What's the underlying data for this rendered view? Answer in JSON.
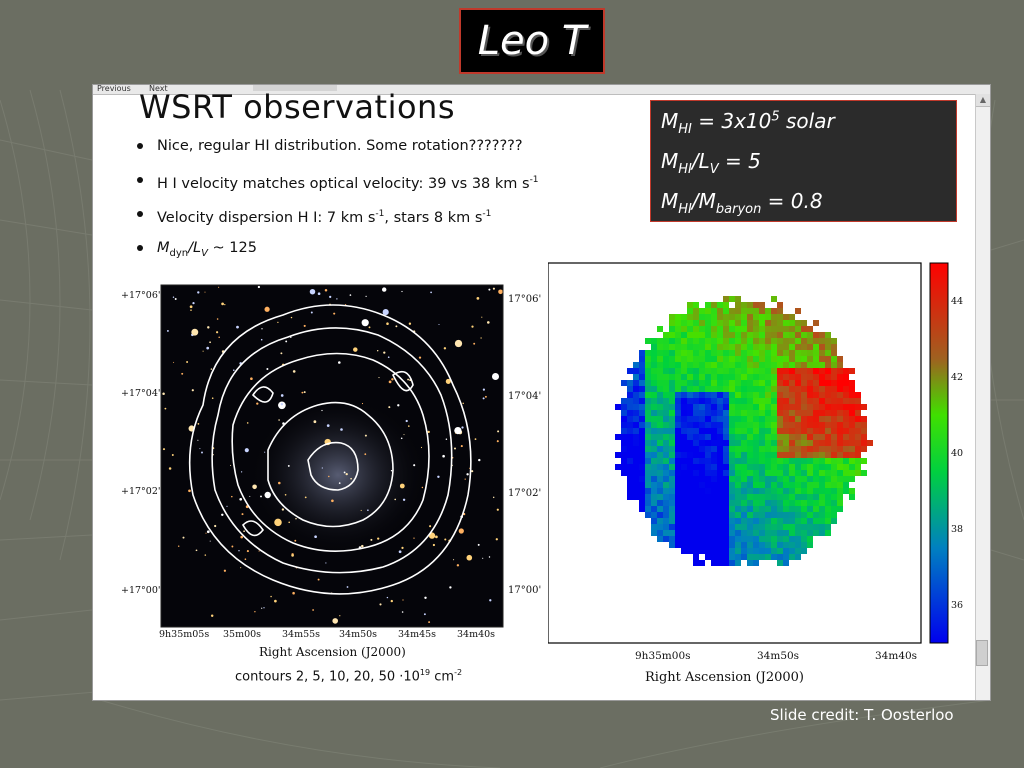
{
  "slide": {
    "title": "Leo T",
    "credit": "Slide credit: T. Oosterloo"
  },
  "window": {
    "toolbar_prev": "Previous",
    "toolbar_next": "Next"
  },
  "paper": {
    "heading": "WSRT observations",
    "bullets": [
      {
        "pre": "Nice, regular HI distribution.    Some rotation???????",
        "sup": "",
        "post": ""
      },
      {
        "pre": "H I velocity matches optical velocity:  39 vs 38 km s",
        "sup": "-1",
        "post": ""
      },
      {
        "pre": "Velocity dispersion H I: 7 km s",
        "sup": "-1",
        "post": ", stars 8 km s",
        "sup2": "-1"
      },
      {
        "pre": "M",
        "sub": "dyn",
        "mid": "/L",
        "sub2": "V",
        "post": " ~ 125"
      }
    ]
  },
  "info": {
    "line1": {
      "m": "M",
      "sub": "HI",
      "text": " = 3x10",
      "sup": "5",
      "tail": " solar"
    },
    "line2": {
      "m": "M",
      "sub": "HI",
      "mid": "/L",
      "sub2": "V",
      "tail": " = 5"
    },
    "line3": {
      "m": "M",
      "sub": "HI",
      "mid": "/M",
      "sub2": "baryon",
      "tail": " = 0.8"
    }
  },
  "left_panel": {
    "dec_ticks": [
      "+17°06'",
      "+17°04'",
      "+17°02'",
      "+17°00'"
    ],
    "ra_ticks": [
      "9h35m05s",
      "35m00s",
      "34m55s",
      "34m50s",
      "34m45s",
      "34m40s"
    ],
    "xlabel": "Right Ascension (J2000)",
    "contours_note_pre": "contours 2, 5, 10, 20, 50 ·10",
    "contours_note_sup": "19",
    "contours_note_post": " cm",
    "contours_note_sup2": "-2"
  },
  "right_panel": {
    "dec_ticks": [
      "17°06'",
      "17°04'",
      "17°02'",
      "17°00'"
    ],
    "ra_ticks": [
      "9h35m00s",
      "34m50s",
      "34m40s"
    ],
    "xlabel": "Right Ascension (J2000)",
    "colorbar_ticks": [
      "44",
      "42",
      "40",
      "38",
      "36"
    ],
    "colors": {
      "high": "#ff0000",
      "mid": "#00dd00",
      "low": "#0000ee"
    }
  },
  "chart_data": {
    "type": "heatmap",
    "title": "",
    "xlabel": "Right Ascension (J2000)",
    "ylabel": "",
    "colorbar": {
      "ticks": [
        44,
        42,
        40,
        38,
        36
      ],
      "range": [
        35,
        45
      ]
    },
    "legend": "right colorbar"
  }
}
